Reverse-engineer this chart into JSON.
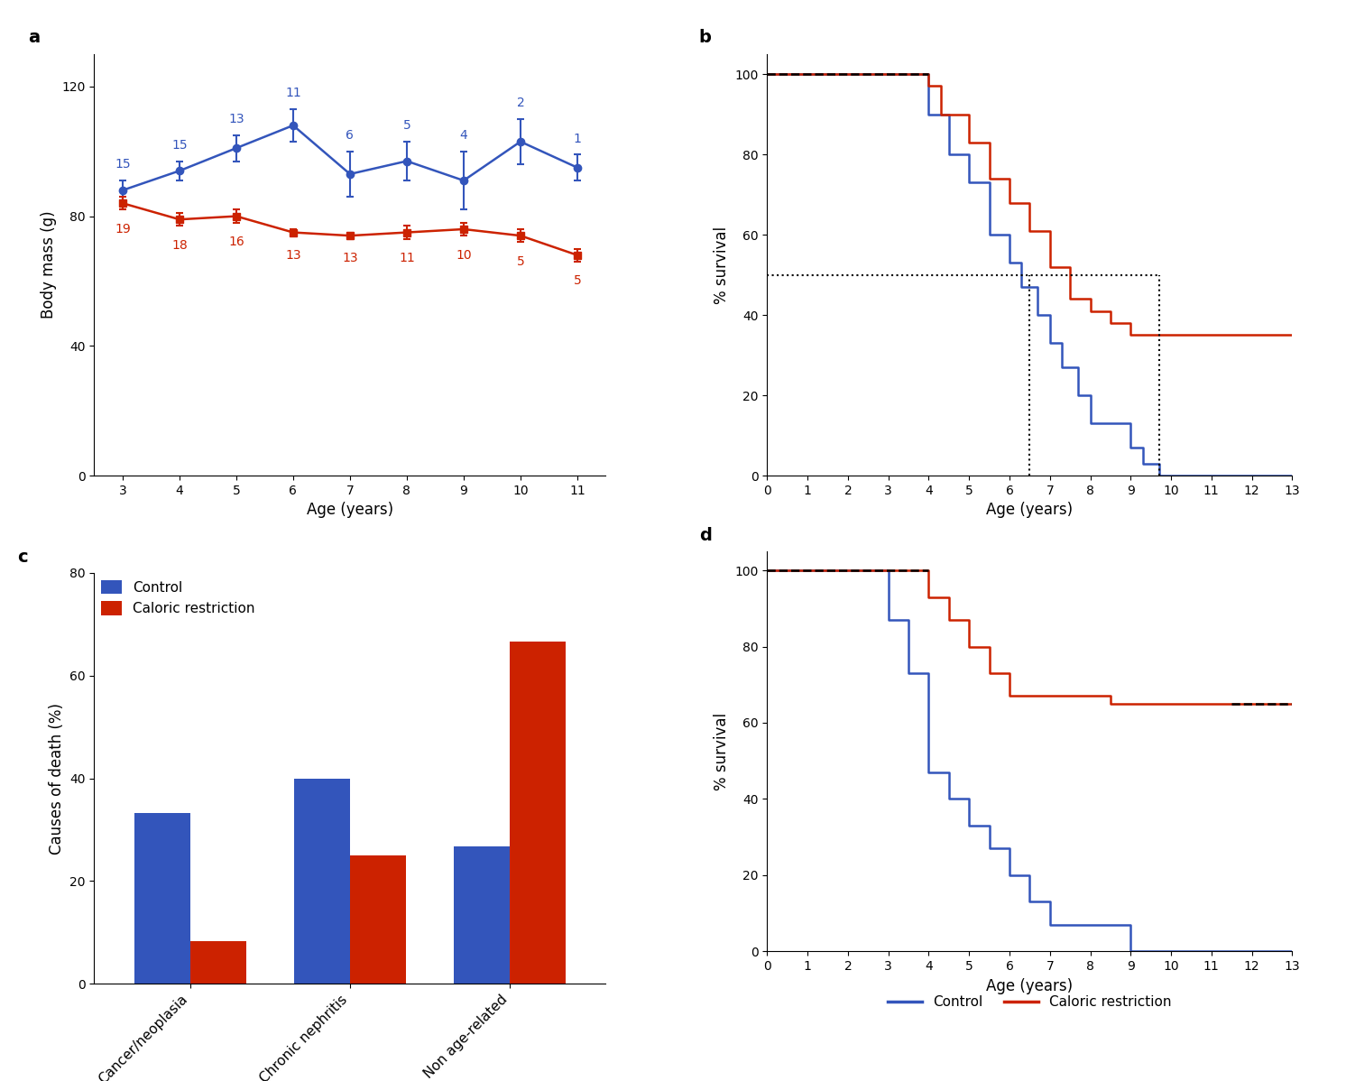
{
  "panel_a": {
    "ages": [
      3,
      4,
      5,
      6,
      7,
      8,
      9,
      10,
      11
    ],
    "control_mean": [
      88,
      94,
      101,
      108,
      93,
      97,
      91,
      103,
      95
    ],
    "control_err": [
      3,
      3,
      4,
      5,
      7,
      6,
      9,
      7,
      4
    ],
    "control_n": [
      15,
      15,
      13,
      11,
      6,
      5,
      4,
      2,
      1
    ],
    "cr_mean": [
      84,
      79,
      80,
      75,
      74,
      75,
      76,
      74,
      68
    ],
    "cr_err": [
      2,
      2,
      2,
      1,
      1,
      2,
      2,
      2,
      2
    ],
    "cr_n": [
      19,
      18,
      16,
      13,
      13,
      11,
      10,
      5,
      5
    ],
    "control_color": "#3355BB",
    "cr_color": "#CC2200",
    "xlabel": "Age (years)",
    "ylabel": "Body mass (g)",
    "ylim": [
      0,
      130
    ],
    "yticks": [
      0,
      40,
      80,
      120
    ]
  },
  "panel_b": {
    "control_steps_x": [
      0,
      4.0,
      4.0,
      4.5,
      4.5,
      5.0,
      5.0,
      5.5,
      5.5,
      6.0,
      6.0,
      6.3,
      6.3,
      6.7,
      6.7,
      7.0,
      7.0,
      7.3,
      7.3,
      7.7,
      7.7,
      8.0,
      8.0,
      9.0,
      9.0,
      9.3,
      9.3,
      9.7,
      9.7,
      10.0,
      10.0,
      10.3,
      10.3,
      10.7,
      10.7,
      11.0,
      11.0,
      11.3,
      11.3,
      13
    ],
    "control_steps_y": [
      100,
      100,
      90,
      90,
      80,
      80,
      73,
      73,
      60,
      60,
      53,
      53,
      47,
      47,
      40,
      40,
      33,
      33,
      27,
      27,
      20,
      20,
      13,
      13,
      7,
      7,
      3,
      3,
      0,
      0,
      0,
      0,
      0,
      0,
      0,
      0,
      0,
      0,
      0,
      0
    ],
    "cr_steps_x": [
      0,
      4.0,
      4.0,
      4.3,
      4.3,
      5.0,
      5.0,
      5.5,
      5.5,
      6.0,
      6.0,
      6.5,
      6.5,
      7.0,
      7.0,
      7.5,
      7.5,
      8.0,
      8.0,
      8.5,
      8.5,
      9.0,
      9.0,
      9.5,
      9.5,
      10.0,
      10.0,
      12.0,
      12.0,
      13
    ],
    "cr_steps_y": [
      100,
      100,
      97,
      97,
      90,
      90,
      83,
      83,
      74,
      74,
      68,
      68,
      61,
      61,
      52,
      52,
      44,
      44,
      41,
      41,
      38,
      38,
      35,
      35,
      35,
      35,
      35,
      35,
      35,
      35
    ],
    "median_blue_x": 6.5,
    "median_red_x": 9.7,
    "control_color": "#3355BB",
    "cr_color": "#CC2200",
    "xlabel": "Age (years)",
    "ylabel": "% survival",
    "ylim": [
      0,
      105
    ],
    "yticks": [
      0,
      20,
      40,
      60,
      80,
      100
    ],
    "xticks": [
      0,
      1,
      2,
      3,
      4,
      5,
      6,
      7,
      8,
      9,
      10,
      11,
      12,
      13
    ]
  },
  "panel_c": {
    "categories": [
      "Cancer/neoplasia",
      "Chronic nephritis",
      "Non age-related"
    ],
    "control_vals": [
      33.3,
      40.0,
      26.7
    ],
    "cr_vals": [
      8.3,
      25.0,
      66.7
    ],
    "control_color": "#3355BB",
    "cr_color": "#CC2200",
    "xlabel": "",
    "ylabel": "Causes of death (%)",
    "ylim": [
      0,
      80
    ],
    "yticks": [
      0,
      20,
      40,
      60,
      80
    ]
  },
  "panel_d": {
    "control_steps_x": [
      0,
      3.0,
      3.0,
      3.5,
      3.5,
      4.0,
      4.0,
      4.5,
      4.5,
      5.0,
      5.0,
      5.5,
      5.5,
      6.0,
      6.0,
      6.5,
      6.5,
      7.0,
      7.0,
      8.0,
      8.0,
      9.0,
      9.0,
      9.5,
      9.5,
      10.0,
      10.0,
      11.0,
      11.0,
      12.0,
      12.0,
      13
    ],
    "control_steps_y": [
      100,
      100,
      87,
      87,
      73,
      73,
      47,
      47,
      40,
      40,
      33,
      33,
      27,
      27,
      20,
      20,
      13,
      13,
      7,
      7,
      7,
      7,
      0,
      0,
      0,
      0,
      0,
      0,
      0,
      0,
      0,
      0
    ],
    "cr_steps_x": [
      0,
      4.0,
      4.0,
      4.5,
      4.5,
      5.0,
      5.0,
      5.5,
      5.5,
      6.0,
      6.0,
      7.0,
      7.0,
      8.0,
      8.0,
      8.5,
      8.5,
      9.5,
      9.5,
      10.0,
      10.0,
      10.5,
      10.5,
      11.5,
      11.5,
      12.0,
      12.0,
      13
    ],
    "cr_steps_y": [
      100,
      100,
      93,
      93,
      87,
      87,
      80,
      80,
      73,
      73,
      67,
      67,
      67,
      67,
      67,
      67,
      65,
      65,
      65,
      65,
      65,
      65,
      65,
      65,
      65,
      65,
      65,
      65
    ],
    "control_color": "#3355BB",
    "cr_color": "#CC2200",
    "xlabel": "Age (years)",
    "ylabel": "% survival",
    "ylim": [
      0,
      105
    ],
    "yticks": [
      0,
      20,
      40,
      60,
      80,
      100
    ],
    "xticks": [
      0,
      1,
      2,
      3,
      4,
      5,
      6,
      7,
      8,
      9,
      10,
      11,
      12,
      13
    ]
  },
  "colors": {
    "control": "#3355BB",
    "cr": "#CC2200"
  }
}
